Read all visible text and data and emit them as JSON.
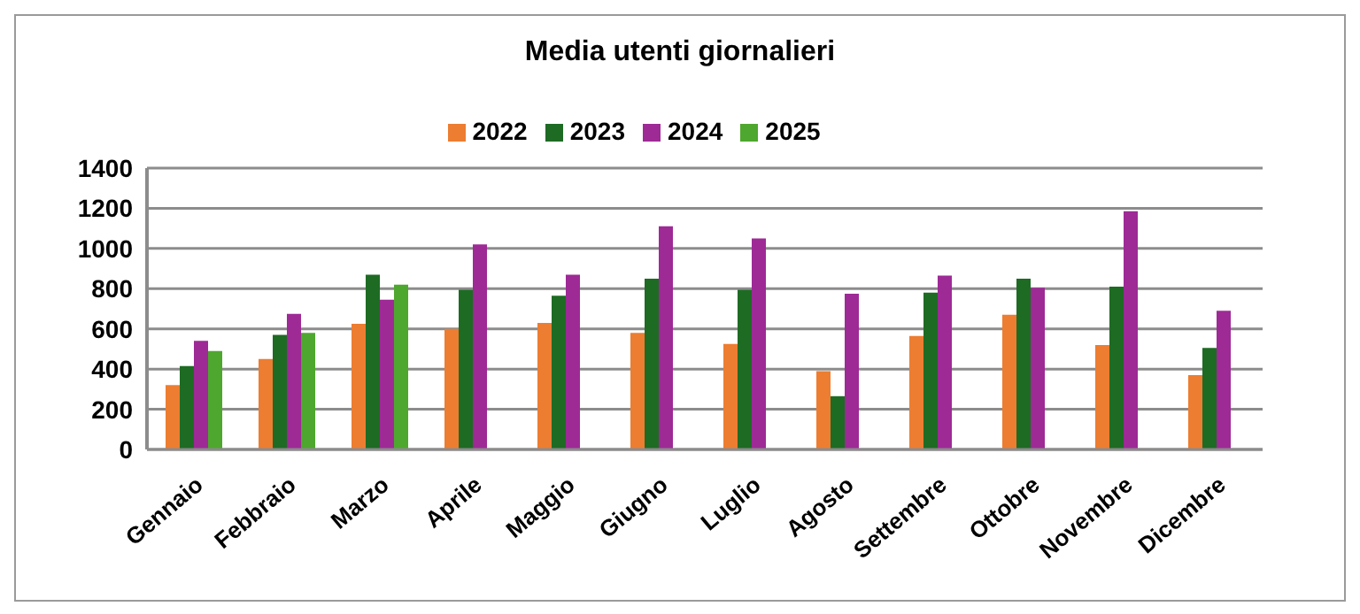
{
  "chart_data": {
    "type": "bar",
    "title": "Media utenti giornalieri",
    "categories": [
      "Gennaio",
      "Febbraio",
      "Marzo",
      "Aprile",
      "Maggio",
      "Giugno",
      "Luglio",
      "Agosto",
      "Settembre",
      "Ottobre",
      "Novembre",
      "Dicembre"
    ],
    "series": [
      {
        "name": "2022",
        "color": "#ed7d31",
        "values": [
          320,
          450,
          625,
          600,
          630,
          580,
          525,
          390,
          565,
          670,
          520,
          370
        ]
      },
      {
        "name": "2023",
        "color": "#1e6b24",
        "values": [
          415,
          570,
          870,
          795,
          765,
          850,
          795,
          265,
          780,
          850,
          810,
          505
        ]
      },
      {
        "name": "2024",
        "color": "#9e2a96",
        "values": [
          540,
          675,
          745,
          1020,
          870,
          1110,
          1050,
          775,
          865,
          805,
          1185,
          690
        ]
      },
      {
        "name": "2025",
        "color": "#4ea72e",
        "values": [
          490,
          580,
          820,
          null,
          null,
          null,
          null,
          null,
          null,
          null,
          null,
          null
        ]
      }
    ],
    "ylim": [
      0,
      1400
    ],
    "yticks": [
      0,
      200,
      400,
      600,
      800,
      1000,
      1200,
      1400
    ],
    "grid": "y",
    "legend": "top"
  }
}
